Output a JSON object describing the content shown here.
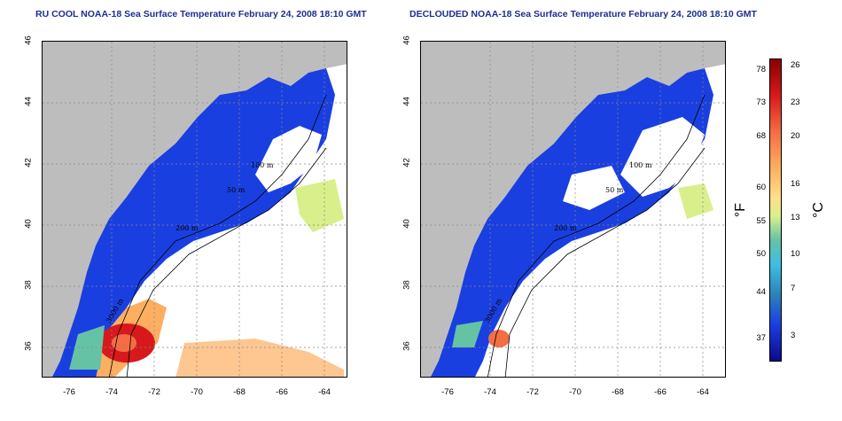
{
  "titles": {
    "left": "RU COOL NOAA-18 Sea Surface Temperature February 24, 2008 18:10 GMT",
    "right": "DECLOUDED NOAA-18 Sea Surface Temperature February 24, 2008 18:10 GMT"
  },
  "axes": {
    "lon_ticks": [
      "-76",
      "-74",
      "-72",
      "-70",
      "-68",
      "-66",
      "-64"
    ],
    "lat_ticks": [
      "46",
      "44",
      "42",
      "40",
      "38",
      "36"
    ],
    "lon_range": [
      -77,
      -63
    ],
    "lat_range": [
      35,
      46
    ]
  },
  "contour_labels": {
    "c50": "50 m",
    "c100": "100 m",
    "c200": "200 m",
    "c3000": "3000 m"
  },
  "colorbar": {
    "fahrenheit_unit": "°F",
    "celsius_unit": "°C",
    "fahrenheit_ticks": [
      "78",
      "73",
      "68",
      "60",
      "55",
      "50",
      "44",
      "37"
    ],
    "celsius_ticks": [
      "26",
      "23",
      "20",
      "16",
      "13",
      "10",
      "7",
      "3"
    ],
    "colors": [
      "#8b0000",
      "#d7191c",
      "#f46d43",
      "#fdae61",
      "#fee08b",
      "#66c2a5",
      "#3fbfe0",
      "#2b83ba",
      "#1a3fe0",
      "#0b0b8a"
    ]
  },
  "colors": {
    "land": "#bdbdbd",
    "cold_water": "#1a3fe0",
    "title": "#1a2f8f"
  }
}
